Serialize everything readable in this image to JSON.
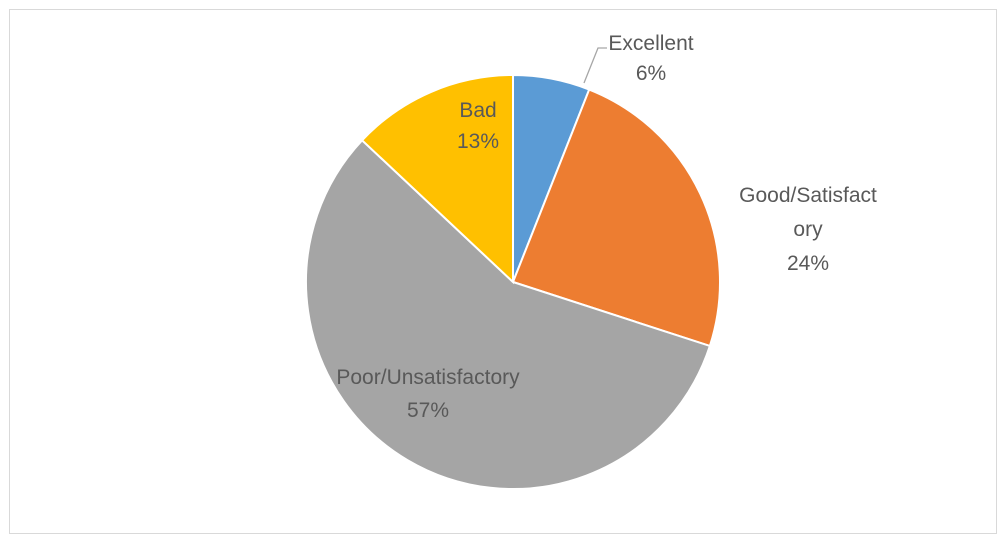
{
  "chart_data": {
    "type": "pie",
    "title": "",
    "categories": [
      "Excellent",
      "Good/Satisfactory",
      "Poor/Unsatisfactory",
      "Bad"
    ],
    "values": [
      6,
      24,
      57,
      13
    ],
    "colors": [
      "#5b9bd5",
      "#ed7d31",
      "#a5a5a5",
      "#ffc000"
    ],
    "labels": [
      {
        "category": "Excellent",
        "lines": [
          "Excellent"
        ],
        "value": "6%"
      },
      {
        "category": "Good/Satisfactory",
        "lines": [
          "Good/Satisfact",
          "ory"
        ],
        "value": "24%"
      },
      {
        "category": "Poor/Unsatisfactory",
        "lines": [
          "Poor/Unsatisfactory"
        ],
        "value": "57%"
      },
      {
        "category": "Bad",
        "lines": [
          "Bad"
        ],
        "value": "13%"
      }
    ],
    "legend": "none",
    "start_angle_deg": 0,
    "direction": "clockwise",
    "slice_border_color": "#ffffff"
  }
}
